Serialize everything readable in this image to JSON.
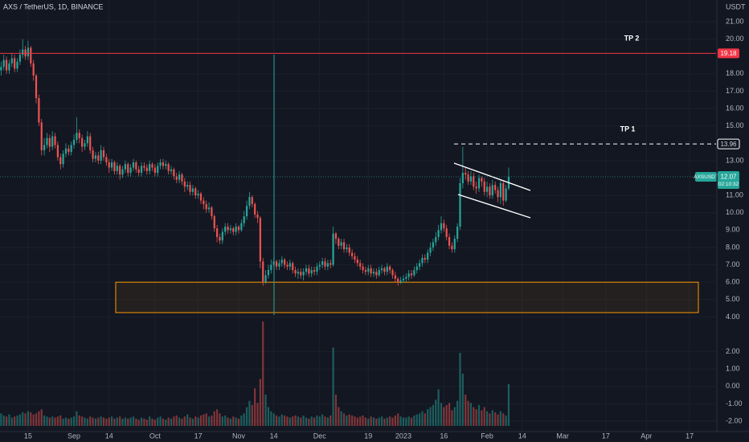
{
  "chart_data": {
    "type": "candlestick",
    "title": "AXS / TetherUS, 1D, BINANCE",
    "currency": "USDT",
    "symbol": "AXSUSDT",
    "countdown": "02:10:32",
    "annotations": [
      "TP 2",
      "TP 1"
    ],
    "levels": [
      {
        "value": 19.18,
        "color": "#f23645"
      },
      {
        "value": 13.96,
        "color": "#ffffff"
      }
    ],
    "zone": [
      4.25,
      6.0
    ],
    "up_color": "#26a69a",
    "down_color": "#ef5350",
    "grid": true,
    "xlim": [
      3.6,
      268.8
    ],
    "ylim": [
      -2.6,
      22.25
    ],
    "xticks": [
      {
        "value": 14,
        "label": "15"
      },
      {
        "value": 31,
        "label": "Sep"
      },
      {
        "value": 44,
        "label": "14"
      },
      {
        "value": 61,
        "label": "Oct"
      },
      {
        "value": 77,
        "label": "17"
      },
      {
        "value": 92,
        "label": "Nov"
      },
      {
        "value": 105,
        "label": "14"
      },
      {
        "value": 122,
        "label": "Dec"
      },
      {
        "value": 140,
        "label": "19"
      },
      {
        "value": 153,
        "label": "2023"
      },
      {
        "value": 168,
        "label": "16"
      },
      {
        "value": 184,
        "label": "Feb"
      },
      {
        "value": 197,
        "label": "14"
      },
      {
        "value": 212,
        "label": "Mar"
      },
      {
        "value": 228,
        "label": "17"
      },
      {
        "value": 243,
        "label": "Apr"
      },
      {
        "value": 259,
        "label": "17"
      }
    ],
    "yticks": [
      {
        "value": 21,
        "label": "21.00"
      },
      {
        "value": 20,
        "label": "20.00"
      },
      {
        "value": 18,
        "label": "18.00"
      },
      {
        "value": 17,
        "label": "17.00"
      },
      {
        "value": 16,
        "label": "16.00"
      },
      {
        "value": 15,
        "label": "15.00"
      },
      {
        "value": 13,
        "label": "13.00"
      },
      {
        "value": 11,
        "label": "11.00"
      },
      {
        "value": 10,
        "label": "10.00"
      },
      {
        "value": 9,
        "label": "9.00"
      },
      {
        "value": 8,
        "label": "8.00"
      },
      {
        "value": 7,
        "label": "7.00"
      },
      {
        "value": 6,
        "label": "6.00"
      },
      {
        "value": 5,
        "label": "5.00"
      },
      {
        "value": 4,
        "label": "4.00"
      },
      {
        "value": 2,
        "label": "2.00"
      },
      {
        "value": 1,
        "label": "1.00"
      },
      {
        "value": 0,
        "label": "0.00"
      },
      {
        "value": -1,
        "label": "-1.00"
      },
      {
        "value": -2,
        "label": "-2.00"
      }
    ],
    "x": [
      4,
      5,
      6,
      7,
      8,
      9,
      10,
      11,
      12,
      13,
      14,
      15,
      16,
      17,
      18,
      19,
      20,
      21,
      22,
      23,
      24,
      25,
      26,
      27,
      28,
      29,
      30,
      31,
      32,
      33,
      34,
      35,
      36,
      37,
      38,
      39,
      40,
      41,
      42,
      43,
      44,
      45,
      46,
      47,
      48,
      49,
      50,
      51,
      52,
      53,
      54,
      55,
      56,
      57,
      58,
      59,
      60,
      61,
      62,
      63,
      64,
      65,
      66,
      67,
      68,
      69,
      70,
      71,
      72,
      73,
      74,
      75,
      76,
      77,
      78,
      79,
      80,
      81,
      82,
      83,
      84,
      85,
      86,
      87,
      88,
      89,
      90,
      91,
      92,
      93,
      94,
      95,
      96,
      97,
      98,
      99,
      100,
      101,
      102,
      103,
      104,
      105,
      106,
      107,
      108,
      109,
      110,
      111,
      112,
      113,
      114,
      115,
      116,
      117,
      118,
      119,
      120,
      121,
      122,
      123,
      124,
      125,
      126,
      127,
      128,
      129,
      130,
      131,
      132,
      133,
      134,
      135,
      136,
      137,
      138,
      139,
      140,
      141,
      142,
      143,
      144,
      145,
      146,
      147,
      148,
      149,
      150,
      151,
      152,
      153,
      154,
      155,
      156,
      157,
      158,
      159,
      160,
      161,
      162,
      163,
      164,
      165,
      166,
      167,
      168,
      169,
      170,
      171,
      172,
      173,
      174,
      175,
      176,
      177,
      178,
      179,
      180,
      181,
      182,
      183,
      184,
      185,
      186,
      187,
      188,
      189,
      190,
      191,
      192
    ],
    "open": [
      18.2,
      18.4,
      18.8,
      18.2,
      18.6,
      18.9,
      18.3,
      18.7,
      19.1,
      19.4,
      19.0,
      19.5,
      18.6,
      17.9,
      16.6,
      15.2,
      13.6,
      13.9,
      14.3,
      13.8,
      14.4,
      13.9,
      13.2,
      12.8,
      13.4,
      13.7,
      13.5,
      13.9,
      14.2,
      14.6,
      14.3,
      13.8,
      14.0,
      14.4,
      13.6,
      13.1,
      13.3,
      13.0,
      13.6,
      13.2,
      12.9,
      12.6,
      12.9,
      12.4,
      12.7,
      12.2,
      12.5,
      12.8,
      12.3,
      12.6,
      12.9,
      12.5,
      12.3,
      12.7,
      12.6,
      12.4,
      12.8,
      12.6,
      12.3,
      12.7,
      12.9,
      12.7,
      12.8,
      12.4,
      12.5,
      12.1,
      11.9,
      12.2,
      11.8,
      11.5,
      11.6,
      11.2,
      11.4,
      11.0,
      11.1,
      10.7,
      10.5,
      10.2,
      10.3,
      9.8,
      9.1,
      8.6,
      8.4,
      8.9,
      9.2,
      9.0,
      9.1,
      8.9,
      9.2,
      9.0,
      9.4,
      9.8,
      10.4,
      10.9,
      10.5,
      9.9,
      9.7,
      7.2,
      6.0,
      6.4,
      6.7,
      7.0,
      7.2,
      6.9,
      7.1,
      7.3,
      7.0,
      6.9,
      7.1,
      6.7,
      6.5,
      6.6,
      6.4,
      6.6,
      6.8,
      6.5,
      6.7,
      6.6,
      6.9,
      7.0,
      7.2,
      6.9,
      7.1,
      7.0,
      8.8,
      8.5,
      8.1,
      8.3,
      7.9,
      8.0,
      7.7,
      7.5,
      7.3,
      7.1,
      6.9,
      6.7,
      6.6,
      6.8,
      6.5,
      6.6,
      6.4,
      6.7,
      6.8,
      6.6,
      6.9,
      6.7,
      6.4,
      6.2,
      6.0,
      6.1,
      6.2,
      6.3,
      6.5,
      6.4,
      6.7,
      6.9,
      7.1,
      7.4,
      7.3,
      7.7,
      8.0,
      8.3,
      8.6,
      9.0,
      9.4,
      9.1,
      8.6,
      8.1,
      7.9,
      8.5,
      9.2,
      11.7,
      12.3,
      12.2,
      11.8,
      12.1,
      11.5,
      11.4,
      12.0,
      11.8,
      11.2,
      11.5,
      11.0,
      11.6,
      11.3,
      10.9,
      11.7,
      10.7,
      11.4
    ],
    "high": [
      18.7,
      19.1,
      19.0,
      18.8,
      19.2,
      19.1,
      18.9,
      19.4,
      20.0,
      19.6,
      19.9,
      19.6,
      18.8,
      18.0,
      16.8,
      15.4,
      14.3,
      14.6,
      14.5,
      14.7,
      14.6,
      14.1,
      13.4,
      13.6,
      14.0,
      13.9,
      14.1,
      14.5,
      15.5,
      14.8,
      14.5,
      14.2,
      14.7,
      14.6,
      13.8,
      13.5,
      13.5,
      13.9,
      13.8,
      13.4,
      13.1,
      13.1,
      13.0,
      12.9,
      12.8,
      12.7,
      13.0,
      12.9,
      12.8,
      13.1,
      13.0,
      12.7,
      12.9,
      12.9,
      12.8,
      13.0,
      12.9,
      12.8,
      12.9,
      13.1,
      13.1,
      13.0,
      12.9,
      12.7,
      12.6,
      12.3,
      12.4,
      12.3,
      12.0,
      11.8,
      11.8,
      11.6,
      11.5,
      11.3,
      11.2,
      10.9,
      10.7,
      10.6,
      10.4,
      9.9,
      9.3,
      8.8,
      9.1,
      9.4,
      9.4,
      9.3,
      9.2,
      9.4,
      9.3,
      9.6,
      10.1,
      10.7,
      11.2,
      11.0,
      10.6,
      10.1,
      9.8,
      7.4,
      6.7,
      7.0,
      7.3,
      7.4,
      7.3,
      7.3,
      7.5,
      7.4,
      7.2,
      7.3,
      7.2,
      6.9,
      6.8,
      6.8,
      6.8,
      7.0,
      7.0,
      6.9,
      6.9,
      7.1,
      7.2,
      7.4,
      7.4,
      7.3,
      7.3,
      9.2,
      8.9,
      8.6,
      8.5,
      8.5,
      8.2,
      8.2,
      7.9,
      7.7,
      7.5,
      7.3,
      7.1,
      6.9,
      7.0,
      7.0,
      6.8,
      6.8,
      6.9,
      7.0,
      6.9,
      7.1,
      7.0,
      6.8,
      6.6,
      6.3,
      6.3,
      6.4,
      6.5,
      6.7,
      6.7,
      6.9,
      7.1,
      7.3,
      7.6,
      7.6,
      7.9,
      8.3,
      8.5,
      8.9,
      9.3,
      9.8,
      9.6,
      9.3,
      8.8,
      8.3,
      8.7,
      9.4,
      12.0,
      13.8,
      12.6,
      12.4,
      12.4,
      12.3,
      11.8,
      12.2,
      12.1,
      12.0,
      11.8,
      11.7,
      11.9,
      11.8,
      11.5,
      11.9,
      11.8,
      11.6,
      12.6
    ],
    "low": [
      17.9,
      18.2,
      18.0,
      18.0,
      18.4,
      18.1,
      18.1,
      18.5,
      18.9,
      18.8,
      18.8,
      18.4,
      17.6,
      16.3,
      15.0,
      13.3,
      13.3,
      13.7,
      13.5,
      13.6,
      13.7,
      13.0,
      12.5,
      12.6,
      13.2,
      13.3,
      13.3,
      13.7,
      14.0,
      14.0,
      13.5,
      13.6,
      13.8,
      13.4,
      12.9,
      12.9,
      12.8,
      12.8,
      13.0,
      12.7,
      12.3,
      12.4,
      12.2,
      12.2,
      11.9,
      12.0,
      12.3,
      12.1,
      12.1,
      12.4,
      12.3,
      12.1,
      12.1,
      12.4,
      12.2,
      12.2,
      12.4,
      12.1,
      12.1,
      12.5,
      12.5,
      12.5,
      12.2,
      12.2,
      11.9,
      11.7,
      11.7,
      11.6,
      11.2,
      11.3,
      11.0,
      11.0,
      10.8,
      10.8,
      10.5,
      10.2,
      10.0,
      10.0,
      9.6,
      8.9,
      8.3,
      8.2,
      8.2,
      8.7,
      8.8,
      8.8,
      8.7,
      8.7,
      8.8,
      8.9,
      9.2,
      9.6,
      10.2,
      10.3,
      9.7,
      9.4,
      6.8,
      5.8,
      5.9,
      6.2,
      6.5,
      6.8,
      6.7,
      6.7,
      6.9,
      6.8,
      6.7,
      6.7,
      6.5,
      6.3,
      6.2,
      6.2,
      6.1,
      6.4,
      6.3,
      6.3,
      6.4,
      6.4,
      6.7,
      6.8,
      6.7,
      6.7,
      6.8,
      6.9,
      8.2,
      7.9,
      7.9,
      7.7,
      7.7,
      7.5,
      7.3,
      7.1,
      6.9,
      6.7,
      6.5,
      6.4,
      6.4,
      6.3,
      6.3,
      6.2,
      6.3,
      6.5,
      6.4,
      6.4,
      6.5,
      6.2,
      6.0,
      5.8,
      5.9,
      6.0,
      6.0,
      6.1,
      6.2,
      6.3,
      6.5,
      6.7,
      6.9,
      7.1,
      7.1,
      7.5,
      7.8,
      8.1,
      8.4,
      8.8,
      8.9,
      8.4,
      7.9,
      7.7,
      7.7,
      8.3,
      9.0,
      11.4,
      11.9,
      11.6,
      11.6,
      11.3,
      11.1,
      11.2,
      11.5,
      11.0,
      10.9,
      10.8,
      10.8,
      11.1,
      10.6,
      10.5,
      10.4,
      10.6,
      11.3
    ],
    "close": [
      18.4,
      18.8,
      18.2,
      18.6,
      18.9,
      18.3,
      18.7,
      19.1,
      19.4,
      19.0,
      19.5,
      18.6,
      17.9,
      16.6,
      15.2,
      13.6,
      13.9,
      14.3,
      13.8,
      14.4,
      13.9,
      13.2,
      12.8,
      13.4,
      13.7,
      13.5,
      13.9,
      14.2,
      14.6,
      14.3,
      13.8,
      14.0,
      14.4,
      13.6,
      13.1,
      13.3,
      13.0,
      13.6,
      13.2,
      12.9,
      12.6,
      12.9,
      12.4,
      12.7,
      12.2,
      12.5,
      12.8,
      12.3,
      12.6,
      12.9,
      12.5,
      12.3,
      12.7,
      12.6,
      12.4,
      12.8,
      12.6,
      12.3,
      12.7,
      12.9,
      12.7,
      12.8,
      12.4,
      12.5,
      12.1,
      11.9,
      12.2,
      11.8,
      11.5,
      11.6,
      11.2,
      11.4,
      11.0,
      11.1,
      10.7,
      10.5,
      10.2,
      10.3,
      9.8,
      9.1,
      8.6,
      8.4,
      8.9,
      9.2,
      9.0,
      9.1,
      8.9,
      9.2,
      9.0,
      9.4,
      9.8,
      10.4,
      10.9,
      10.5,
      9.9,
      9.7,
      7.2,
      6.0,
      6.4,
      6.7,
      7.0,
      7.2,
      6.9,
      7.1,
      7.3,
      7.0,
      6.9,
      7.1,
      6.7,
      6.5,
      6.6,
      6.4,
      6.6,
      6.8,
      6.5,
      6.7,
      6.6,
      6.9,
      7.0,
      7.2,
      6.9,
      7.1,
      7.0,
      8.8,
      8.5,
      8.1,
      8.3,
      7.9,
      8.0,
      7.7,
      7.5,
      7.3,
      7.1,
      6.9,
      6.7,
      6.6,
      6.8,
      6.5,
      6.6,
      6.4,
      6.7,
      6.8,
      6.6,
      6.9,
      6.7,
      6.4,
      6.2,
      6.0,
      6.1,
      6.2,
      6.3,
      6.5,
      6.4,
      6.7,
      6.9,
      7.1,
      7.4,
      7.3,
      7.7,
      8.0,
      8.3,
      8.6,
      9.0,
      9.4,
      9.1,
      8.6,
      8.1,
      7.9,
      8.5,
      9.2,
      11.7,
      12.3,
      12.2,
      11.8,
      12.1,
      11.5,
      11.4,
      12.0,
      11.8,
      11.2,
      11.5,
      11.0,
      11.6,
      11.3,
      10.9,
      11.7,
      10.7,
      11.4,
      12.07
    ],
    "volume": [
      12,
      10,
      9,
      11,
      8,
      9,
      10,
      11,
      13,
      12,
      14,
      13,
      11,
      12,
      14,
      16,
      10,
      9,
      8,
      9,
      8,
      9,
      10,
      7,
      8,
      7,
      8,
      9,
      14,
      10,
      9,
      8,
      7,
      9,
      8,
      7,
      8,
      9,
      8,
      7,
      8,
      9,
      7,
      8,
      9,
      7,
      8,
      7,
      8,
      9,
      7,
      6,
      8,
      7,
      6,
      9,
      7,
      6,
      8,
      9,
      7,
      6,
      8,
      7,
      9,
      10,
      8,
      7,
      9,
      11,
      8,
      7,
      9,
      8,
      10,
      11,
      12,
      9,
      10,
      14,
      16,
      12,
      9,
      10,
      8,
      7,
      9,
      8,
      7,
      10,
      12,
      18,
      24,
      20,
      36,
      22,
      45,
      100,
      30,
      18,
      14,
      12,
      10,
      9,
      11,
      10,
      9,
      8,
      9,
      10,
      9,
      8,
      10,
      8,
      7,
      9,
      8,
      10,
      9,
      11,
      9,
      8,
      10,
      75,
      30,
      18,
      14,
      12,
      10,
      11,
      10,
      9,
      8,
      9,
      10,
      8,
      7,
      9,
      8,
      7,
      8,
      9,
      7,
      8,
      9,
      8,
      10,
      12,
      9,
      8,
      8,
      9,
      8,
      10,
      11,
      12,
      14,
      12,
      16,
      18,
      20,
      25,
      35,
      22,
      18,
      20,
      22,
      15,
      18,
      24,
      70,
      50,
      30,
      24,
      22,
      18,
      16,
      20,
      15,
      18,
      14,
      12,
      15,
      13,
      11,
      14,
      12,
      10,
      40
    ]
  }
}
